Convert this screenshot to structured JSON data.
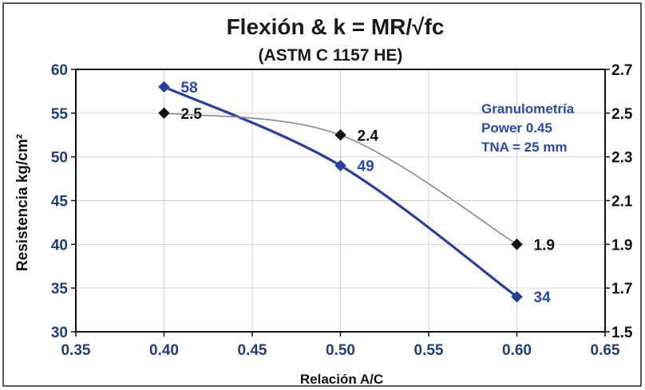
{
  "chart_data": {
    "type": "line",
    "title": "Flexión   &   k = MR/√fc",
    "subtitle": "(ASTM C 1157 HE)",
    "xlabel": "Relación A/C",
    "ylabel": "Resistencia kg/cm²",
    "xlim": [
      0.35,
      0.65
    ],
    "ylim": [
      30,
      60
    ],
    "y2lim": [
      1.5,
      2.7
    ],
    "x_ticks": [
      "0.35",
      "0.40",
      "0.45",
      "0.50",
      "0.55",
      "0.60",
      "0.65"
    ],
    "y_ticks": [
      "30",
      "35",
      "40",
      "45",
      "50",
      "55",
      "60"
    ],
    "y2_ticks": [
      "1.5",
      "1.7",
      "1.9",
      "2.1",
      "2.3",
      "2.5",
      "2.7"
    ],
    "grid": true,
    "series": [
      {
        "axis": "left",
        "color": "#2a3f9a",
        "x": [
          0.4,
          0.5,
          0.6
        ],
        "y": [
          58,
          49,
          34
        ],
        "labels": [
          "58",
          "49",
          "34"
        ]
      },
      {
        "axis": "right",
        "color": "#8a8a8a",
        "marker_color": "#111111",
        "x": [
          0.4,
          0.5,
          0.6
        ],
        "y": [
          2.5,
          2.4,
          1.9
        ],
        "labels": [
          "2.5",
          "2.4",
          "1.9"
        ]
      }
    ],
    "annotation": [
      "Granulometría",
      "Power 0.45",
      "TNA = 25 mm"
    ]
  }
}
